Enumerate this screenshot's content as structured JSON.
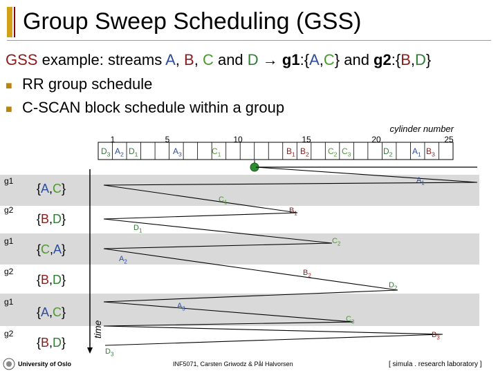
{
  "title": "Group Sweep Scheduling (GSS)",
  "intro": {
    "prefix": "GSS",
    "middle": " example: streams ",
    "A": "A",
    "comma1": ", ",
    "B": "B",
    "comma2": ", ",
    "C": "C",
    "and": " and ",
    "D": "D",
    "arrow": " → ",
    "g1": "g1",
    "g1set_open": ":{",
    "g1set_A": "A",
    "g1set_comma": ",",
    "g1set_C": "C",
    "g1set_close": "} and ",
    "g2": "g2",
    "g2set_open": ":{",
    "g2set_B": "B",
    "g2set_comma": ",",
    "g2set_D": "D",
    "g2set_close": "}"
  },
  "bullets": [
    "RR group schedule",
    "C-SCAN block schedule within a group"
  ],
  "axis": {
    "label": "cylinder number",
    "ticks": [
      "1",
      "5",
      "10",
      "15",
      "20",
      "25"
    ],
    "time_label": "time"
  },
  "blocks": [
    {
      "label": "D",
      "sub": "3"
    },
    {
      "label": "A",
      "sub": "2"
    },
    {
      "label": "D",
      "sub": "1"
    },
    {
      "label": "A",
      "sub": "3"
    },
    {
      "label": "C",
      "sub": "1"
    },
    {
      "label": "B",
      "sub": "1"
    },
    {
      "label": "B",
      "sub": "2"
    },
    {
      "label": "C",
      "sub": "2"
    },
    {
      "label": "C",
      "sub": "3"
    },
    {
      "label": "D",
      "sub": "2"
    },
    {
      "label": "A",
      "sub": "1"
    },
    {
      "label": "B",
      "sub": "3"
    }
  ],
  "rows": [
    {
      "group": "g1",
      "set": [
        "{",
        "A",
        ",",
        "C",
        "}"
      ]
    },
    {
      "group": "g2",
      "set": [
        "{",
        "B",
        ",",
        "D",
        "}"
      ]
    },
    {
      "group": "g1",
      "set": [
        "{",
        "C",
        ",",
        "A",
        "}"
      ]
    },
    {
      "group": "g2",
      "set": [
        "{",
        "B",
        ",",
        "D",
        "}"
      ]
    },
    {
      "group": "g1",
      "set": [
        "{",
        "A",
        ",",
        "C",
        "}"
      ]
    },
    {
      "group": "g2",
      "set": [
        "{",
        "B",
        ",",
        "D",
        "}"
      ]
    }
  ],
  "point_labels": [
    {
      "label": "A",
      "sub": "1"
    },
    {
      "label": "C",
      "sub": "1"
    },
    {
      "label": "B",
      "sub": "1"
    },
    {
      "label": "D",
      "sub": "1"
    },
    {
      "label": "C",
      "sub": "2"
    },
    {
      "label": "A",
      "sub": "2"
    },
    {
      "label": "B",
      "sub": "2"
    },
    {
      "label": "D",
      "sub": "2"
    },
    {
      "label": "A",
      "sub": "3"
    },
    {
      "label": "C",
      "sub": "3"
    },
    {
      "label": "B",
      "sub": "3"
    },
    {
      "label": "D",
      "sub": "3"
    }
  ],
  "footer": {
    "left": "University of Oslo",
    "center": "INF5071, Carsten Griwodz & Pål Halvorsen",
    "right": "[ simula . research laboratory ]"
  },
  "colors": {
    "A": "#2b4c9c",
    "B": "#8b1a1a",
    "C": "#4a9a2a",
    "D": "#2e7d32",
    "band": "#d9d9d9",
    "marker": "#2e8b2e",
    "accent": "#b8860b"
  }
}
